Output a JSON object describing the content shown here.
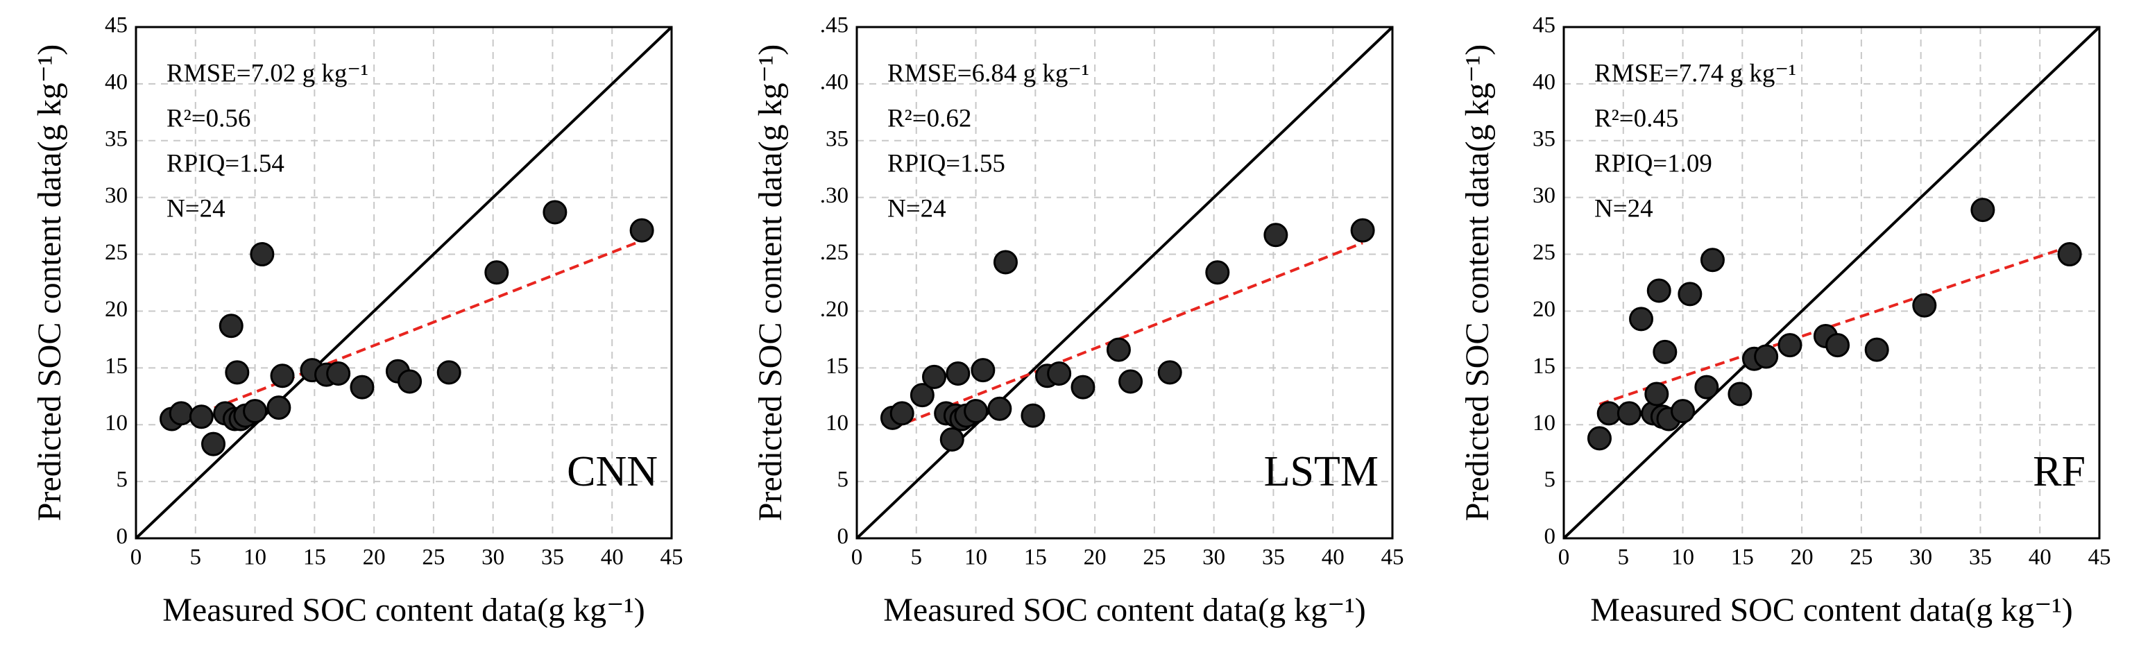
{
  "chart_data": [
    {
      "type": "scatter",
      "model": "CNN",
      "xlabel": "Measured SOC content data(g kg⁻¹)",
      "ylabel": "Predicted SOC content data(g kg⁻¹)",
      "annotations": [
        "RMSE=7.02 g kg⁻¹",
        "R²=0.56",
        "RPIQ=1.54",
        "N=24"
      ],
      "xlim": [
        0,
        45
      ],
      "ylim": [
        0,
        45
      ],
      "xticks": [
        0,
        5,
        10,
        15,
        20,
        25,
        30,
        35,
        40,
        45
      ],
      "yticks": [
        0,
        5,
        10,
        15,
        20,
        25,
        30,
        35,
        40,
        45
      ],
      "grid": true,
      "series": [
        {
          "color": "#2b2b2b",
          "x": [
            3,
            3.8,
            5.5,
            6.5,
            7.5,
            8,
            8.3,
            8.5,
            8.8,
            9.2,
            10,
            10.6,
            12,
            12.3,
            14.8,
            16,
            17,
            19,
            22,
            23,
            26.3,
            30.3,
            35.2,
            42.5
          ],
          "values": [
            10.5,
            11,
            10.7,
            8.3,
            11,
            18.7,
            10.5,
            14.6,
            10.5,
            10.8,
            11.2,
            25,
            11.5,
            14.3,
            14.8,
            14.4,
            14.5,
            13.3,
            14.7,
            13.8,
            14.6,
            23.4,
            28.7,
            27.1
          ]
        }
      ],
      "identity_line": {
        "x": [
          0,
          45
        ],
        "y": [
          0,
          45
        ],
        "color": "#000000"
      },
      "trend_line": {
        "x": [
          3,
          42.5
        ],
        "y": [
          10,
          26.2
        ],
        "color": "#e8251f"
      }
    },
    {
      "type": "scatter",
      "model": "LSTM",
      "xlabel": "Measured SOC content data(g kg⁻¹)",
      "ylabel": "Predicted SOC content data(g kg⁻¹)",
      "annotations": [
        "RMSE=6.84 g kg⁻¹",
        "R²=0.62",
        "RPIQ=1.55",
        "N=24"
      ],
      "xlim": [
        0,
        45
      ],
      "ylim": [
        0,
        45
      ],
      "xticks": [
        0,
        5,
        10,
        15,
        20,
        25,
        30,
        35,
        40,
        45
      ],
      "yticks": [
        0,
        5,
        10,
        15,
        {
          "value": 20,
          "label": ".20"
        },
        {
          "value": 25,
          "label": ".25"
        },
        {
          "value": 30,
          "label": ".30"
        },
        35,
        {
          "value": 40,
          "label": ".40"
        },
        {
          "value": 45,
          "label": ".45"
        }
      ],
      "grid": true,
      "series": [
        {
          "color": "#2b2b2b",
          "x": [
            3,
            3.8,
            5.5,
            6.5,
            7.5,
            8,
            8.3,
            8.5,
            8.8,
            9.2,
            10,
            10.6,
            12,
            12.5,
            14.8,
            16,
            17,
            19,
            22,
            23,
            26.3,
            30.3,
            35.2,
            42.5
          ],
          "values": [
            10.6,
            11,
            12.6,
            14.2,
            11,
            8.7,
            10.8,
            14.5,
            10.5,
            10.8,
            11.2,
            14.8,
            11.4,
            24.3,
            10.8,
            14.3,
            14.5,
            13.3,
            16.6,
            13.8,
            14.6,
            23.4,
            26.7,
            27.1
          ]
        }
      ],
      "identity_line": {
        "x": [
          0,
          45
        ],
        "y": [
          0,
          45
        ],
        "color": "#000000"
      },
      "trend_line": {
        "x": [
          3,
          42.5
        ],
        "y": [
          9.7,
          26
        ],
        "color": "#e8251f"
      }
    },
    {
      "type": "scatter",
      "model": "RF",
      "xlabel": "Measured SOC content data(g kg⁻¹)",
      "ylabel": "Predicted SOC content data(g kg⁻¹)",
      "annotations": [
        "RMSE=7.74 g kg⁻¹",
        "R²=0.45",
        "RPIQ=1.09",
        "N=24"
      ],
      "xlim": [
        0,
        45
      ],
      "ylim": [
        0,
        45
      ],
      "xticks": [
        0,
        5,
        10,
        15,
        20,
        25,
        30,
        35,
        40,
        45
      ],
      "yticks": [
        0,
        5,
        10,
        15,
        20,
        25,
        30,
        35,
        40,
        45
      ],
      "grid": true,
      "series": [
        {
          "color": "#2b2b2b",
          "x": [
            3,
            3.8,
            5.5,
            6.5,
            7.5,
            7.8,
            8,
            8.3,
            8.5,
            8.8,
            10,
            10.6,
            12,
            12.5,
            14.8,
            16,
            17,
            19,
            22,
            23,
            26.3,
            30.3,
            35.2,
            42.5
          ],
          "values": [
            8.8,
            11,
            11,
            19.3,
            11,
            12.7,
            21.8,
            10.7,
            16.4,
            10.5,
            11.2,
            21.5,
            13.3,
            24.5,
            12.7,
            15.8,
            16,
            17,
            17.8,
            17,
            16.6,
            20.5,
            28.9,
            25
          ]
        }
      ],
      "identity_line": {
        "x": [
          0,
          45
        ],
        "y": [
          0,
          45
        ],
        "color": "#000000"
      },
      "trend_line": {
        "x": [
          3,
          42.5
        ],
        "y": [
          11.8,
          25.7
        ],
        "color": "#e8251f"
      }
    }
  ]
}
